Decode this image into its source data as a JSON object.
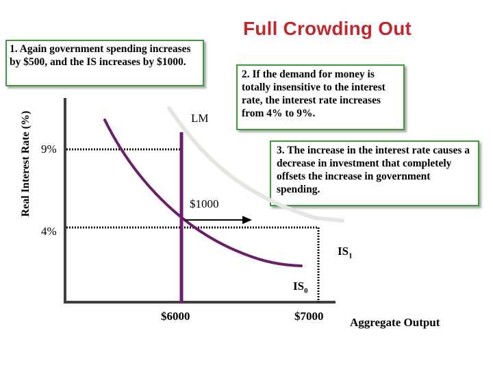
{
  "title": "Full Crowding Out",
  "notes": {
    "note1": "1. Again government spending increases by $500, and the IS increases by $1000.",
    "note2": "2. If the demand for money is totally insensitive to the interest rate, the interest rate increases from 4% to 9%.",
    "note3": "3.  The increase in the interest rate causes a decrease in investment that completely offsets the increase in government spending."
  },
  "axes": {
    "y_label": "Real Interest Rate (%)",
    "x_label": "Aggregate Output"
  },
  "curves": {
    "lm": "LM",
    "is0": "IS",
    "is0_sub": "0",
    "is1": "IS",
    "is1_sub": "1"
  },
  "levels": {
    "rate_high": "9%",
    "rate_low": "4%",
    "output_a": "$6000",
    "output_b": "$7000",
    "shift": "$1000"
  },
  "colors": {
    "title": "#c0282d",
    "lm_curve": "#6b1f6b",
    "is0_curve": "#6b1f6b",
    "is1_curve": "#e6e6e1",
    "box_border": "#3e9a3a"
  }
}
